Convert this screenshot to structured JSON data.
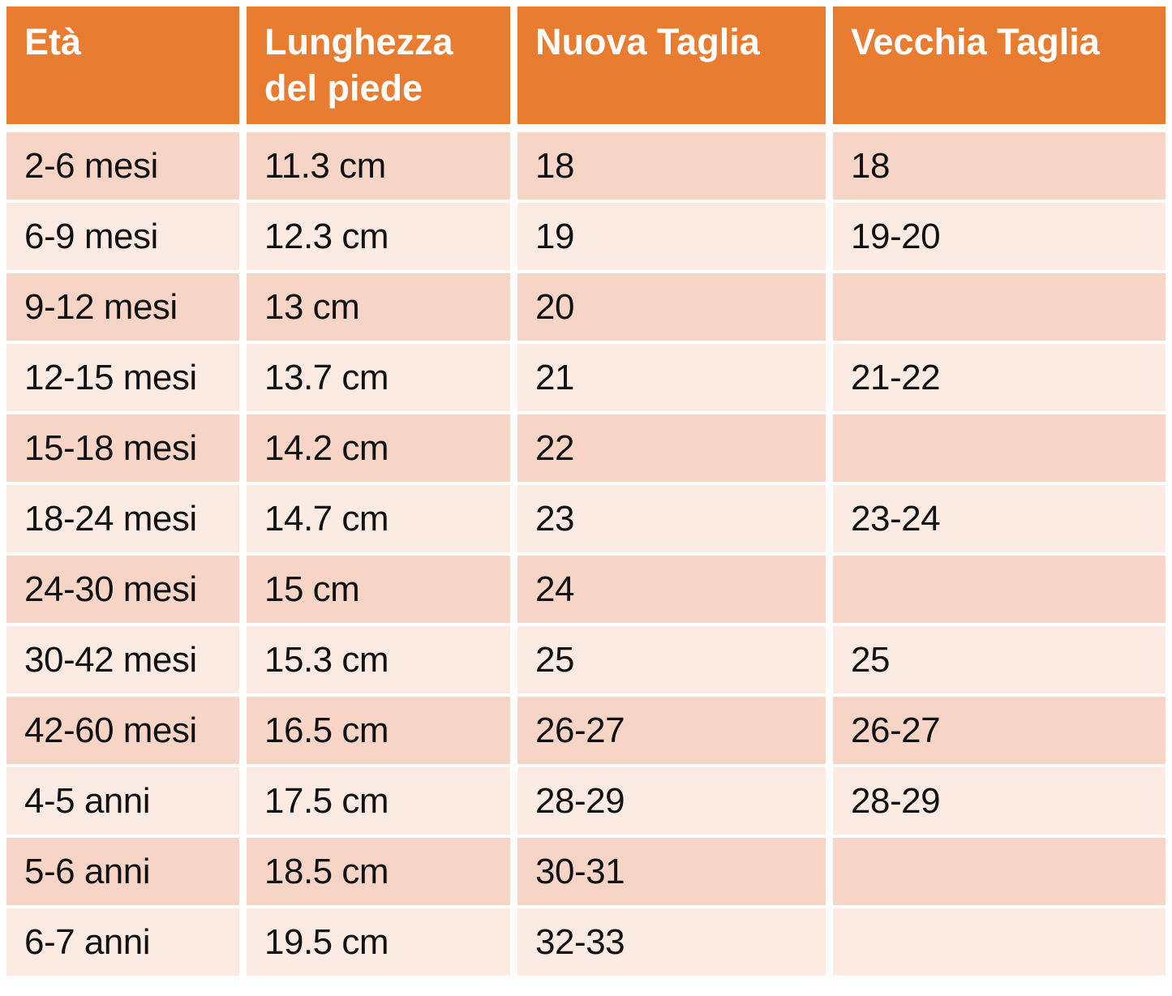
{
  "chart_data": {
    "type": "table",
    "columns": [
      "Età",
      "Lunghezza del piede",
      "Nuova Taglia",
      "Vecchia Taglia"
    ],
    "rows": [
      [
        "2-6 mesi",
        "11.3 cm",
        "18",
        "18"
      ],
      [
        "6-9 mesi",
        "12.3 cm",
        "19",
        "19-20"
      ],
      [
        "9-12 mesi",
        "13 cm",
        "20",
        ""
      ],
      [
        "12-15 mesi",
        "13.7 cm",
        "21",
        "21-22"
      ],
      [
        "15-18 mesi",
        "14.2 cm",
        "22",
        ""
      ],
      [
        "18-24 mesi",
        "14.7 cm",
        "23",
        "23-24"
      ],
      [
        "24-30 mesi",
        "15 cm",
        "24",
        ""
      ],
      [
        "30-42 mesi",
        "15.3 cm",
        "25",
        "25"
      ],
      [
        "42-60 mesi",
        "16.5 cm",
        "26-27",
        "26-27"
      ],
      [
        "4-5 anni",
        "17.5 cm",
        "28-29",
        "28-29"
      ],
      [
        "5-6 anni",
        "18.5 cm",
        "30-31",
        ""
      ],
      [
        "6-7 anni",
        "19.5 cm",
        "32-33",
        ""
      ]
    ],
    "layout": {
      "header_position": "top",
      "banded_rows": true,
      "first_band": "dark"
    }
  },
  "colors": {
    "header_bg": "#E87C30",
    "header_text": "#FFFFFF",
    "row_dark": "#F7D5C6",
    "row_light": "#FCEBE3",
    "text": "#111111",
    "background": "#FFFFFF"
  }
}
